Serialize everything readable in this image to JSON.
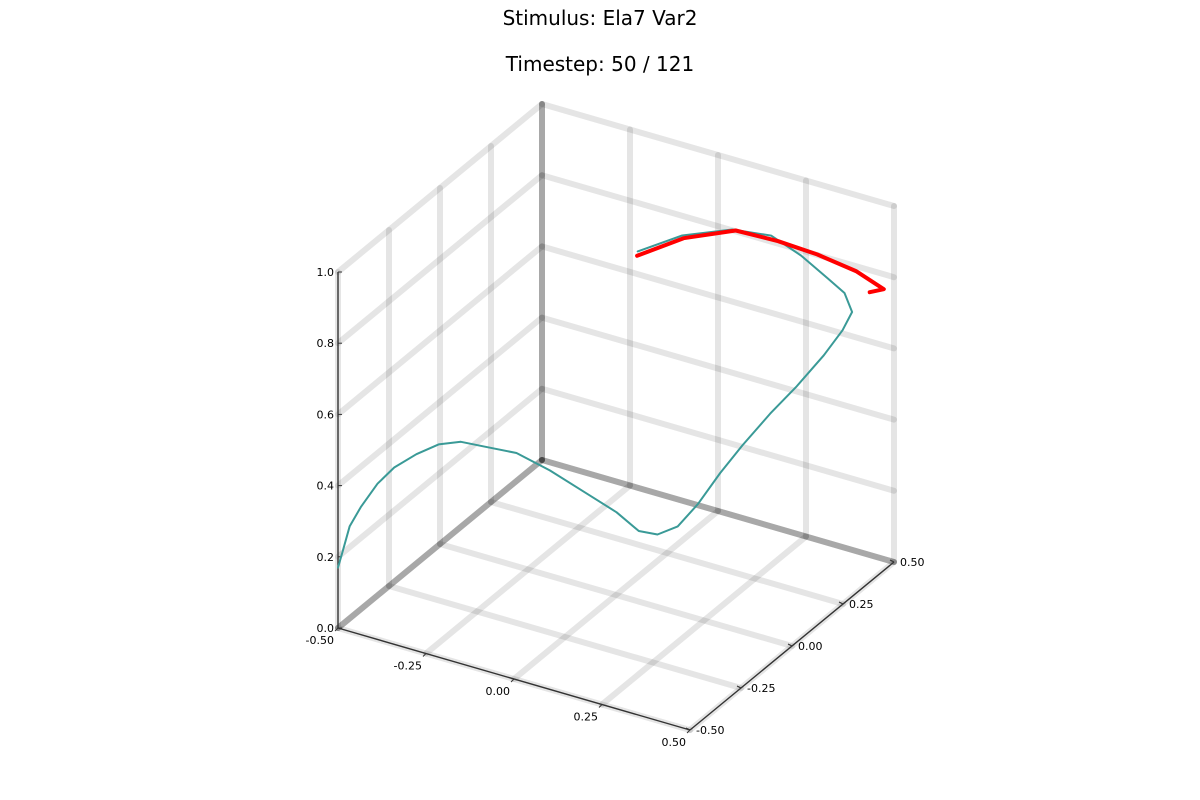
{
  "chart_title": "Stimulus: Ela7 Var2",
  "chart_subtitle": "Timestep: 50 / 121",
  "chart_data": {
    "type": "line",
    "dimensions": 3,
    "title": "Stimulus: Ela7 Var2",
    "subtitle": "Timestep: 50 / 121",
    "xlabel": "",
    "ylabel": "",
    "zlabel": "",
    "xlim": [
      -0.5,
      0.5
    ],
    "ylim": [
      -0.5,
      0.5
    ],
    "zlim": [
      0.0,
      1.0
    ],
    "x_ticks": [
      "-0.50",
      "-0.25",
      "0.00",
      "0.25",
      "0.50"
    ],
    "y_ticks": [
      "-0.50",
      "-0.25",
      "0.00",
      "0.25",
      "0.50"
    ],
    "z_ticks": [
      "0.0",
      "0.2",
      "0.4",
      "0.6",
      "0.8",
      "1.0"
    ],
    "grid": true,
    "legend": false,
    "series": [
      {
        "color": "#3a9a97",
        "linewidth": 2,
        "points": [
          [
            -0.5,
            -0.5,
            0.17
          ],
          [
            -0.5,
            -0.48,
            0.2
          ],
          [
            -0.49,
            -0.46,
            0.27
          ],
          [
            -0.47,
            -0.44,
            0.32
          ],
          [
            -0.44,
            -0.41,
            0.38
          ],
          [
            -0.41,
            -0.38,
            0.42
          ],
          [
            -0.37,
            -0.34,
            0.45
          ],
          [
            -0.33,
            -0.3,
            0.47
          ],
          [
            -0.29,
            -0.26,
            0.47
          ],
          [
            -0.25,
            -0.22,
            0.45
          ],
          [
            -0.19,
            -0.16,
            0.42
          ],
          [
            -0.13,
            -0.1,
            0.36
          ],
          [
            -0.07,
            -0.04,
            0.29
          ],
          [
            -0.01,
            0.02,
            0.22
          ],
          [
            0.03,
            0.06,
            0.16
          ],
          [
            0.06,
            0.1,
            0.14
          ],
          [
            0.1,
            0.13,
            0.16
          ],
          [
            0.14,
            0.16,
            0.22
          ],
          [
            0.18,
            0.2,
            0.3
          ],
          [
            0.22,
            0.24,
            0.37
          ],
          [
            0.27,
            0.29,
            0.45
          ],
          [
            0.32,
            0.33,
            0.52
          ],
          [
            0.37,
            0.38,
            0.6
          ],
          [
            0.4,
            0.42,
            0.66
          ],
          [
            0.41,
            0.45,
            0.7
          ],
          [
            0.4,
            0.43,
            0.76
          ],
          [
            0.38,
            0.38,
            0.82
          ],
          [
            0.34,
            0.32,
            0.9
          ],
          [
            0.29,
            0.26,
            0.97
          ],
          [
            0.22,
            0.19,
            1.0
          ],
          [
            0.13,
            0.1,
            1.0
          ],
          [
            0.05,
            0.02,
            0.97
          ]
        ]
      },
      {
        "color": "#ff0000",
        "linewidth": 4,
        "points": [
          [
            0.06,
            0.0,
            0.97
          ],
          [
            0.14,
            0.09,
            1.0
          ],
          [
            0.23,
            0.19,
            1.0
          ],
          [
            0.31,
            0.26,
            0.96
          ],
          [
            0.38,
            0.33,
            0.91
          ],
          [
            0.45,
            0.4,
            0.85
          ],
          [
            0.5,
            0.45,
            0.79
          ],
          [
            0.46,
            0.45,
            0.77
          ]
        ]
      }
    ]
  }
}
